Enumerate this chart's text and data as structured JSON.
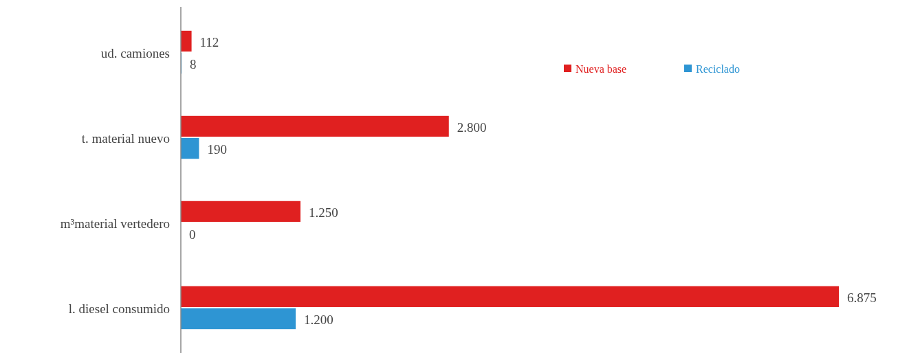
{
  "chart_data": {
    "type": "bar",
    "orientation": "horizontal",
    "categories": [
      "ud. camiones",
      "t. material nuevo",
      "m³material vertedero",
      "l. diesel consumido"
    ],
    "series": [
      {
        "name": "Nueva base",
        "color": "#e02020",
        "values": [
          112,
          2800,
          1250,
          6875
        ],
        "value_labels": [
          "112",
          "2.800",
          "1.250",
          "6.875"
        ]
      },
      {
        "name": "Reciclado",
        "color": "#2e95d3",
        "values": [
          8,
          190,
          0,
          1200
        ],
        "value_labels": [
          "8",
          "190",
          "0",
          "1.200"
        ]
      }
    ],
    "legend": "top right"
  }
}
